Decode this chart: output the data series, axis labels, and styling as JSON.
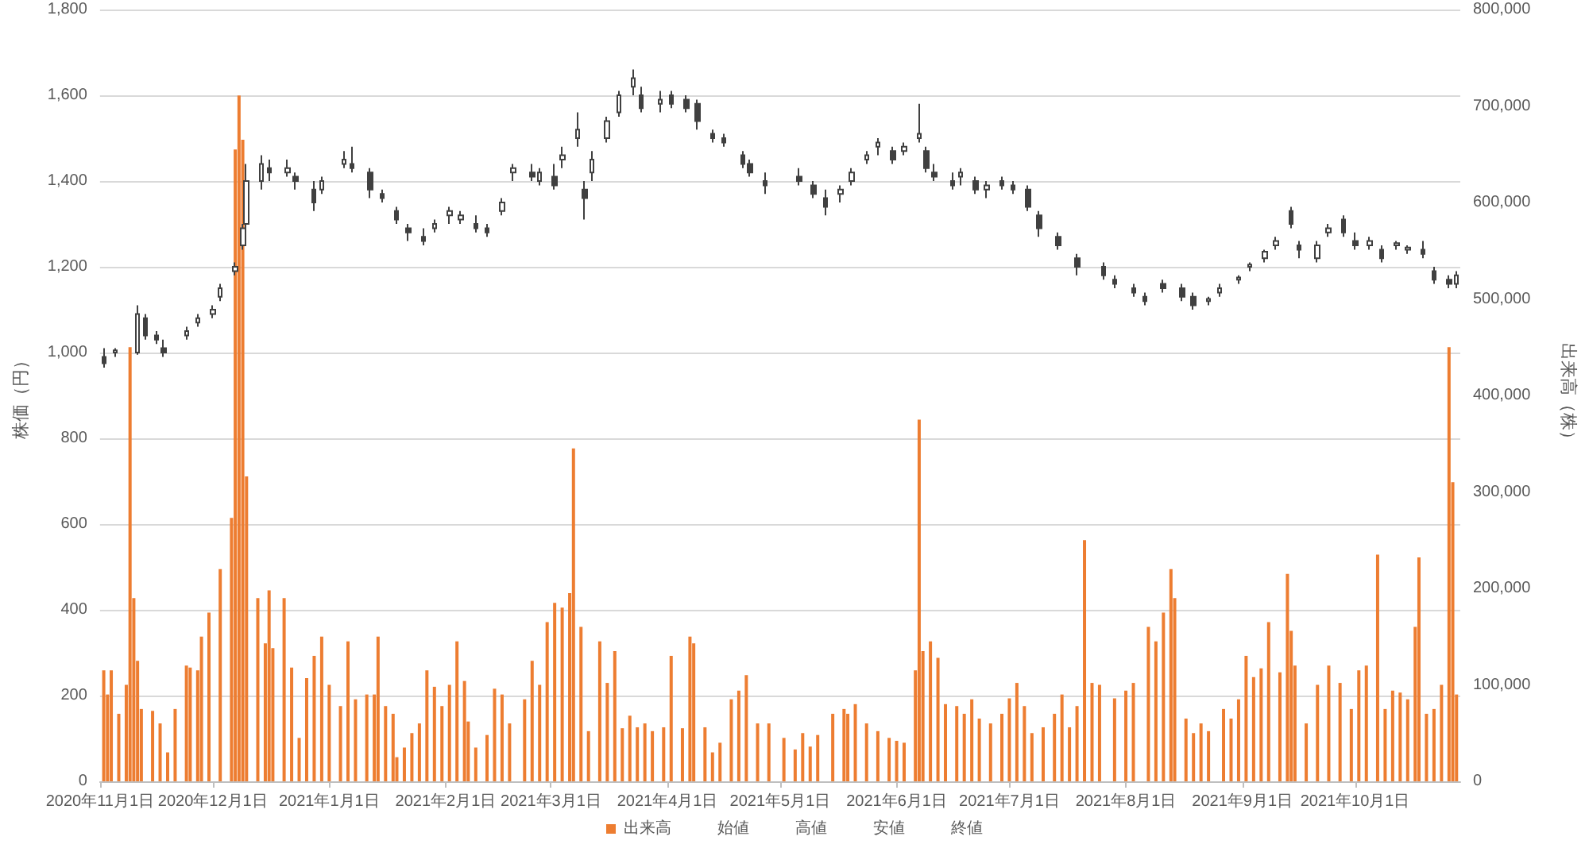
{
  "chart_data": {
    "type": "candlestick",
    "ylabel": "株価（円）",
    "y2label": "出来高（株）",
    "xlim": [
      "2020-11-01",
      "2021-10-29"
    ],
    "xticks": [
      {
        "value": "2020-11-01",
        "label": "2020年11月1日"
      },
      {
        "value": "2020-12-01",
        "label": "2020年12月1日"
      },
      {
        "value": "2021-01-01",
        "label": "2021年1月1日"
      },
      {
        "value": "2021-02-01",
        "label": "2021年2月1日"
      },
      {
        "value": "2021-03-01",
        "label": "2021年3月1日"
      },
      {
        "value": "2021-04-01",
        "label": "2021年4月1日"
      },
      {
        "value": "2021-05-01",
        "label": "2021年5月1日"
      },
      {
        "value": "2021-06-01",
        "label": "2021年6月1日"
      },
      {
        "value": "2021-07-01",
        "label": "2021年7月1日"
      },
      {
        "value": "2021-08-01",
        "label": "2021年8月1日"
      },
      {
        "value": "2021-09-01",
        "label": "2021年9月1日"
      },
      {
        "value": "2021-10-01",
        "label": "2021年10月1日"
      }
    ],
    "ylim": [
      0,
      1800
    ],
    "yticks": [
      0,
      200,
      400,
      600,
      800,
      {
        "value": 1000,
        "label": "1,000"
      },
      {
        "value": 1200,
        "label": "1,200"
      },
      {
        "value": 1400,
        "label": "1,400"
      },
      {
        "value": 1600,
        "label": "1,600"
      },
      {
        "value": 1800,
        "label": "1,800"
      }
    ],
    "y2lim": [
      0,
      800000
    ],
    "y2ticks": [
      0,
      {
        "value": 100000,
        "label": "100,000"
      },
      {
        "value": 200000,
        "label": "200,000"
      },
      {
        "value": 300000,
        "label": "300,000"
      },
      {
        "value": 400000,
        "label": "400,000"
      },
      {
        "value": 500000,
        "label": "500,000"
      },
      {
        "value": 600000,
        "label": "600,000"
      },
      {
        "value": 700000,
        "label": "700,000"
      },
      {
        "value": 800000,
        "label": "800,000"
      }
    ],
    "grid": "y",
    "legend": "bottom",
    "annotations": [
      "始値",
      "高値",
      "安値",
      "終値"
    ],
    "series": [
      {
        "type": "bar",
        "name": "出来高",
        "axis": "y2",
        "color": "#ed7d31",
        "x": [
          "2020-11-02",
          "2020-11-03",
          "2020-11-04",
          "2020-11-06",
          "2020-11-08",
          "2020-11-09",
          "2020-11-10",
          "2020-11-11",
          "2020-11-12",
          "2020-11-15",
          "2020-11-17",
          "2020-11-19",
          "2020-11-21",
          "2020-11-24",
          "2020-11-25",
          "2020-11-27",
          "2020-11-28",
          "2020-11-30",
          "2020-12-03",
          "2020-12-06",
          "2020-12-07",
          "2020-12-08",
          "2020-12-09",
          "2020-12-10",
          "2020-12-13",
          "2020-12-15",
          "2020-12-16",
          "2020-12-17",
          "2020-12-20",
          "2020-12-22",
          "2020-12-24",
          "2020-12-26",
          "2020-12-28",
          "2020-12-30",
          "2021-01-01",
          "2021-01-04",
          "2021-01-06",
          "2021-01-08",
          "2021-01-11",
          "2021-01-13",
          "2021-01-14",
          "2021-01-16",
          "2021-01-18",
          "2021-01-19",
          "2021-01-21",
          "2021-01-23",
          "2021-01-25",
          "2021-01-27",
          "2021-01-29",
          "2021-01-31",
          "2021-02-02",
          "2021-02-04",
          "2021-02-06",
          "2021-02-07",
          "2021-02-09",
          "2021-02-12",
          "2021-02-14",
          "2021-02-16",
          "2021-02-18",
          "2021-02-22",
          "2021-02-24",
          "2021-02-26",
          "2021-02-28",
          "2021-03-02",
          "2021-03-04",
          "2021-03-06",
          "2021-03-07",
          "2021-03-09",
          "2021-03-11",
          "2021-03-14",
          "2021-03-16",
          "2021-03-18",
          "2021-03-20",
          "2021-03-22",
          "2021-03-24",
          "2021-03-26",
          "2021-03-28",
          "2021-03-31",
          "2021-04-02",
          "2021-04-05",
          "2021-04-07",
          "2021-04-08",
          "2021-04-11",
          "2021-04-13",
          "2021-04-15",
          "2021-04-18",
          "2021-04-20",
          "2021-04-22",
          "2021-04-25",
          "2021-04-28",
          "2021-05-02",
          "2021-05-05",
          "2021-05-07",
          "2021-05-09",
          "2021-05-11",
          "2021-05-15",
          "2021-05-18",
          "2021-05-19",
          "2021-05-21",
          "2021-05-24",
          "2021-05-27",
          "2021-05-30",
          "2021-06-01",
          "2021-06-03",
          "2021-06-06",
          "2021-06-07",
          "2021-06-08",
          "2021-06-10",
          "2021-06-12",
          "2021-06-14",
          "2021-06-17",
          "2021-06-19",
          "2021-06-21",
          "2021-06-23",
          "2021-06-26",
          "2021-06-29",
          "2021-07-01",
          "2021-07-03",
          "2021-07-05",
          "2021-07-07",
          "2021-07-10",
          "2021-07-13",
          "2021-07-15",
          "2021-07-17",
          "2021-07-19",
          "2021-07-21",
          "2021-07-23",
          "2021-07-25",
          "2021-07-29",
          "2021-08-01",
          "2021-08-03",
          "2021-08-07",
          "2021-08-09",
          "2021-08-11",
          "2021-08-13",
          "2021-08-14",
          "2021-08-17",
          "2021-08-19",
          "2021-08-21",
          "2021-08-23",
          "2021-08-27",
          "2021-08-29",
          "2021-08-31",
          "2021-09-02",
          "2021-09-04",
          "2021-09-06",
          "2021-09-08",
          "2021-09-11",
          "2021-09-13",
          "2021-09-14",
          "2021-09-15",
          "2021-09-18",
          "2021-09-21",
          "2021-09-24",
          "2021-09-27",
          "2021-09-30",
          "2021-10-02",
          "2021-10-04",
          "2021-10-07",
          "2021-10-09",
          "2021-10-11",
          "2021-10-13",
          "2021-10-15",
          "2021-10-17",
          "2021-10-18",
          "2021-10-20",
          "2021-10-22",
          "2021-10-24",
          "2021-10-26",
          "2021-10-27",
          "2021-10-28"
        ],
        "values": [
          115000,
          90000,
          115000,
          70000,
          100000,
          450000,
          190000,
          125000,
          75000,
          73000,
          60000,
          30000,
          75000,
          120000,
          118000,
          115000,
          150000,
          175000,
          220000,
          273000,
          655000,
          711000,
          665000,
          316000,
          190000,
          143000,
          198000,
          138000,
          190000,
          118000,
          45000,
          107000,
          130000,
          150000,
          100000,
          78000,
          145000,
          85000,
          90000,
          90000,
          150000,
          78000,
          70000,
          25000,
          35000,
          50000,
          60000,
          115000,
          98000,
          78000,
          100000,
          145000,
          104000,
          62000,
          35000,
          48000,
          96000,
          90000,
          60000,
          85000,
          125000,
          100000,
          165000,
          185000,
          180000,
          195000,
          345000,
          160000,
          52000,
          145000,
          102000,
          135000,
          55000,
          68000,
          56000,
          60000,
          52000,
          56000,
          130000,
          55000,
          150000,
          143000,
          56000,
          30000,
          40000,
          85000,
          94000,
          110000,
          60000,
          60000,
          45000,
          33000,
          50000,
          36000,
          48000,
          70000,
          75000,
          70000,
          80000,
          60000,
          52000,
          45000,
          42000,
          40000,
          115000,
          375000,
          135000,
          145000,
          128000,
          80000,
          78000,
          70000,
          85000,
          65000,
          60000,
          70000,
          86000,
          102000,
          78000,
          50000,
          56000,
          70000,
          90000,
          56000,
          78000,
          250000,
          102000,
          100000,
          86000,
          94000,
          102000,
          160000,
          145000,
          175000,
          220000,
          190000,
          65000,
          50000,
          60000,
          52000,
          75000,
          65000,
          85000,
          130000,
          108000,
          117000,
          165000,
          113000,
          215000,
          156000,
          120000,
          60000,
          100000,
          120000,
          102000,
          75000,
          115000,
          120000,
          235000,
          75000,
          94000,
          92000,
          85000,
          160000,
          232000,
          70000,
          75000,
          100000,
          450000,
          310000,
          90000
        ]
      },
      {
        "color": "#404040",
        "x": [
          "2020-11-02",
          "2020-11-05",
          "2020-11-11",
          "2020-11-13",
          "2020-11-16",
          "2020-11-18",
          "2020-11-24",
          "2020-11-27",
          "2020-12-01",
          "2020-12-03",
          "2020-12-07",
          "2020-12-09",
          "2020-12-10",
          "2020-12-14",
          "2020-12-16",
          "2020-12-21",
          "2020-12-23",
          "2020-12-28",
          "2020-12-30",
          "2021-01-05",
          "2021-01-07",
          "2021-01-12",
          "2021-01-15",
          "2021-01-19",
          "2021-01-22",
          "2021-01-26",
          "2021-01-29",
          "2021-02-02",
          "2021-02-05",
          "2021-02-09",
          "2021-02-12",
          "2021-02-16",
          "2021-02-19",
          "2021-02-24",
          "2021-02-26",
          "2021-03-02",
          "2021-03-04",
          "2021-03-08",
          "2021-03-10",
          "2021-03-12",
          "2021-03-16",
          "2021-03-19",
          "2021-03-23",
          "2021-03-25",
          "2021-03-30",
          "2021-04-02",
          "2021-04-06",
          "2021-04-09",
          "2021-04-13",
          "2021-04-16",
          "2021-04-21",
          "2021-04-23",
          "2021-04-27",
          "2021-05-06",
          "2021-05-10",
          "2021-05-13",
          "2021-05-17",
          "2021-05-20",
          "2021-05-24",
          "2021-05-27",
          "2021-05-31",
          "2021-06-03",
          "2021-06-07",
          "2021-06-09",
          "2021-06-11",
          "2021-06-16",
          "2021-06-18",
          "2021-06-22",
          "2021-06-25",
          "2021-06-29",
          "2021-07-02",
          "2021-07-06",
          "2021-07-09",
          "2021-07-14",
          "2021-07-19",
          "2021-07-26",
          "2021-07-29",
          "2021-08-03",
          "2021-08-06",
          "2021-08-11",
          "2021-08-16",
          "2021-08-19",
          "2021-08-23",
          "2021-08-26",
          "2021-08-31",
          "2021-09-03",
          "2021-09-07",
          "2021-09-10",
          "2021-09-14",
          "2021-09-16",
          "2021-09-21",
          "2021-09-24",
          "2021-09-28",
          "2021-10-01",
          "2021-10-05",
          "2021-10-08",
          "2021-10-12",
          "2021-10-15",
          "2021-10-19",
          "2021-10-22",
          "2021-10-26",
          "2021-10-28"
        ],
        "ohlc": [
          [
            990,
            1010,
            965,
            975
          ],
          [
            1000,
            1010,
            990,
            1005
          ],
          [
            1000,
            1110,
            995,
            1090
          ],
          [
            1080,
            1090,
            1030,
            1040
          ],
          [
            1040,
            1050,
            1020,
            1030
          ],
          [
            1010,
            1030,
            990,
            1000
          ],
          [
            1040,
            1060,
            1030,
            1050
          ],
          [
            1070,
            1090,
            1060,
            1080
          ],
          [
            1090,
            1110,
            1080,
            1100
          ],
          [
            1130,
            1160,
            1120,
            1150
          ],
          [
            1190,
            1210,
            1180,
            1200
          ],
          [
            1250,
            1300,
            1240,
            1290
          ],
          [
            1300,
            1440,
            1280,
            1400
          ],
          [
            1400,
            1460,
            1380,
            1440
          ],
          [
            1430,
            1450,
            1400,
            1420
          ],
          [
            1420,
            1450,
            1410,
            1430
          ],
          [
            1410,
            1420,
            1380,
            1400
          ],
          [
            1380,
            1400,
            1330,
            1350
          ],
          [
            1380,
            1410,
            1370,
            1400
          ],
          [
            1440,
            1470,
            1430,
            1450
          ],
          [
            1440,
            1480,
            1420,
            1430
          ],
          [
            1420,
            1430,
            1360,
            1380
          ],
          [
            1370,
            1380,
            1350,
            1360
          ],
          [
            1330,
            1340,
            1300,
            1310
          ],
          [
            1290,
            1300,
            1260,
            1280
          ],
          [
            1270,
            1290,
            1250,
            1260
          ],
          [
            1290,
            1310,
            1280,
            1300
          ],
          [
            1320,
            1340,
            1300,
            1330
          ],
          [
            1310,
            1330,
            1300,
            1320
          ],
          [
            1300,
            1320,
            1280,
            1290
          ],
          [
            1290,
            1300,
            1270,
            1280
          ],
          [
            1330,
            1360,
            1320,
            1350
          ],
          [
            1420,
            1440,
            1400,
            1430
          ],
          [
            1420,
            1440,
            1400,
            1410
          ],
          [
            1400,
            1430,
            1390,
            1420
          ],
          [
            1410,
            1440,
            1380,
            1390
          ],
          [
            1450,
            1480,
            1430,
            1460
          ],
          [
            1500,
            1560,
            1480,
            1520
          ],
          [
            1380,
            1400,
            1310,
            1360
          ],
          [
            1420,
            1470,
            1400,
            1450
          ],
          [
            1500,
            1550,
            1490,
            1540
          ],
          [
            1560,
            1610,
            1550,
            1600
          ],
          [
            1620,
            1660,
            1600,
            1640
          ],
          [
            1600,
            1620,
            1560,
            1570
          ],
          [
            1580,
            1610,
            1560,
            1590
          ],
          [
            1600,
            1610,
            1570,
            1580
          ],
          [
            1590,
            1600,
            1560,
            1570
          ],
          [
            1580,
            1590,
            1520,
            1540
          ],
          [
            1510,
            1520,
            1490,
            1500
          ],
          [
            1500,
            1510,
            1480,
            1490
          ],
          [
            1460,
            1470,
            1430,
            1440
          ],
          [
            1440,
            1450,
            1410,
            1420
          ],
          [
            1400,
            1420,
            1370,
            1390
          ],
          [
            1410,
            1430,
            1390,
            1400
          ],
          [
            1390,
            1400,
            1360,
            1370
          ],
          [
            1360,
            1380,
            1320,
            1340
          ],
          [
            1370,
            1390,
            1350,
            1380
          ],
          [
            1400,
            1430,
            1390,
            1420
          ],
          [
            1450,
            1470,
            1440,
            1460
          ],
          [
            1480,
            1500,
            1460,
            1490
          ],
          [
            1470,
            1480,
            1440,
            1450
          ],
          [
            1470,
            1490,
            1460,
            1480
          ],
          [
            1500,
            1580,
            1490,
            1510
          ],
          [
            1470,
            1480,
            1420,
            1430
          ],
          [
            1420,
            1440,
            1400,
            1410
          ],
          [
            1400,
            1420,
            1380,
            1390
          ],
          [
            1410,
            1430,
            1390,
            1420
          ],
          [
            1400,
            1410,
            1370,
            1380
          ],
          [
            1380,
            1400,
            1360,
            1390
          ],
          [
            1400,
            1410,
            1380,
            1390
          ],
          [
            1390,
            1400,
            1370,
            1380
          ],
          [
            1380,
            1390,
            1330,
            1340
          ],
          [
            1320,
            1330,
            1270,
            1290
          ],
          [
            1270,
            1280,
            1240,
            1250
          ],
          [
            1220,
            1230,
            1180,
            1200
          ],
          [
            1200,
            1210,
            1170,
            1180
          ],
          [
            1170,
            1180,
            1150,
            1160
          ],
          [
            1150,
            1160,
            1130,
            1140
          ],
          [
            1130,
            1140,
            1110,
            1120
          ],
          [
            1160,
            1170,
            1140,
            1150
          ],
          [
            1150,
            1160,
            1120,
            1130
          ],
          [
            1130,
            1140,
            1100,
            1110
          ],
          [
            1120,
            1130,
            1110,
            1125
          ],
          [
            1140,
            1160,
            1130,
            1150
          ],
          [
            1170,
            1180,
            1160,
            1175
          ],
          [
            1200,
            1210,
            1190,
            1205
          ],
          [
            1220,
            1240,
            1210,
            1235
          ],
          [
            1250,
            1270,
            1240,
            1260
          ],
          [
            1330,
            1340,
            1290,
            1300
          ],
          [
            1250,
            1260,
            1220,
            1240
          ],
          [
            1220,
            1260,
            1210,
            1250
          ],
          [
            1280,
            1300,
            1270,
            1290
          ],
          [
            1310,
            1320,
            1270,
            1280
          ],
          [
            1260,
            1280,
            1240,
            1250
          ],
          [
            1250,
            1270,
            1240,
            1260
          ],
          [
            1240,
            1250,
            1210,
            1220
          ],
          [
            1250,
            1260,
            1240,
            1255
          ],
          [
            1240,
            1250,
            1230,
            1245
          ],
          [
            1240,
            1260,
            1220,
            1230
          ],
          [
            1190,
            1200,
            1160,
            1170
          ],
          [
            1170,
            1180,
            1150,
            1160
          ],
          [
            1160,
            1190,
            1150,
            1180
          ]
        ]
      }
    ]
  }
}
